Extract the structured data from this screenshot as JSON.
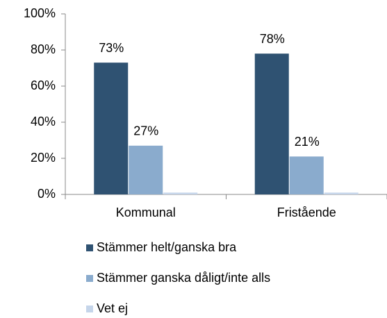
{
  "chart_data": {
    "type": "bar",
    "categories": [
      "Kommunal",
      "Fristående"
    ],
    "series": [
      {
        "name": "Stämmer helt/ganska bra",
        "color": "#2f5272",
        "values": [
          73,
          78
        ],
        "value_labels": [
          "73%",
          "78%"
        ]
      },
      {
        "name": "Stämmer ganska dåligt/inte alls",
        "color": "#8aabcd",
        "values": [
          27,
          21
        ],
        "value_labels": [
          "27%",
          "21%"
        ]
      },
      {
        "name": "Vet ej",
        "color": "#c5d5ea",
        "values": [
          1,
          1
        ]
      }
    ],
    "ylim": [
      0,
      100
    ],
    "yticks": [
      {
        "value": 0,
        "label": "0%"
      },
      {
        "value": 20,
        "label": "20%"
      },
      {
        "value": 40,
        "label": "40%"
      },
      {
        "value": 60,
        "label": "60%"
      },
      {
        "value": 80,
        "label": "80%"
      },
      {
        "value": 100,
        "label": "100%"
      }
    ],
    "grid": false,
    "legend": "bottom"
  }
}
